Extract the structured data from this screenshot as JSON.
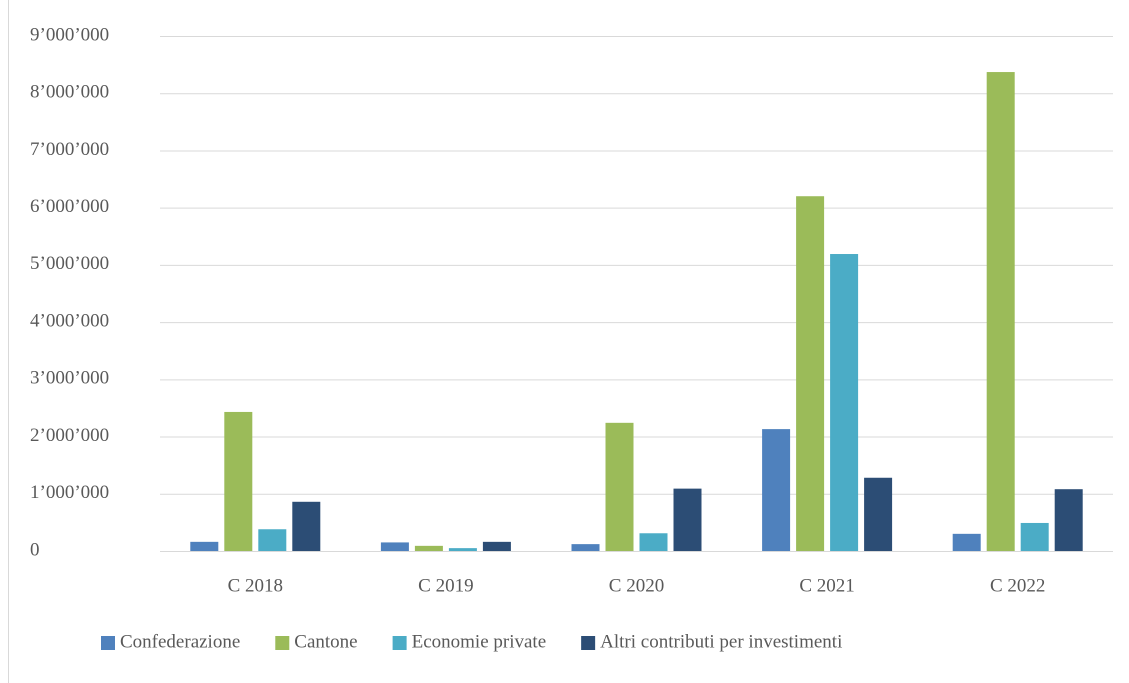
{
  "chart_data": {
    "type": "bar",
    "categories": [
      "C 2018",
      "C 2019",
      "C 2020",
      "C 2021",
      "C 2022"
    ],
    "series": [
      {
        "name": "Confederazione",
        "color": "#4f81bd",
        "values": [
          160000,
          150000,
          120000,
          2130000,
          300000
        ]
      },
      {
        "name": "Cantone",
        "color": "#9bbb59",
        "values": [
          2430000,
          90000,
          2240000,
          6200000,
          8370000
        ]
      },
      {
        "name": "Economie private",
        "color": "#4bacc6",
        "values": [
          380000,
          50000,
          310000,
          5190000,
          490000
        ]
      },
      {
        "name": "Altri contributi per investimenti",
        "color": "#2c4d75",
        "values": [
          860000,
          160000,
          1090000,
          1280000,
          1080000
        ]
      }
    ],
    "ylim": [
      0,
      9000000
    ],
    "yticks": [
      0,
      {
        "value": 1000000,
        "label": "1’000’000"
      },
      {
        "value": 2000000,
        "label": "2’000’000"
      },
      {
        "value": 3000000,
        "label": "3’000’000"
      },
      {
        "value": 4000000,
        "label": "4’000’000"
      },
      {
        "value": 5000000,
        "label": "5’000’000"
      },
      {
        "value": 6000000,
        "label": "6’000’000"
      },
      {
        "value": 7000000,
        "label": "7’000’000"
      },
      {
        "value": 8000000,
        "label": "8’000’000"
      },
      {
        "value": 9000000,
        "label": "9’000’000"
      }
    ],
    "grid": true,
    "legend": "bottom"
  }
}
